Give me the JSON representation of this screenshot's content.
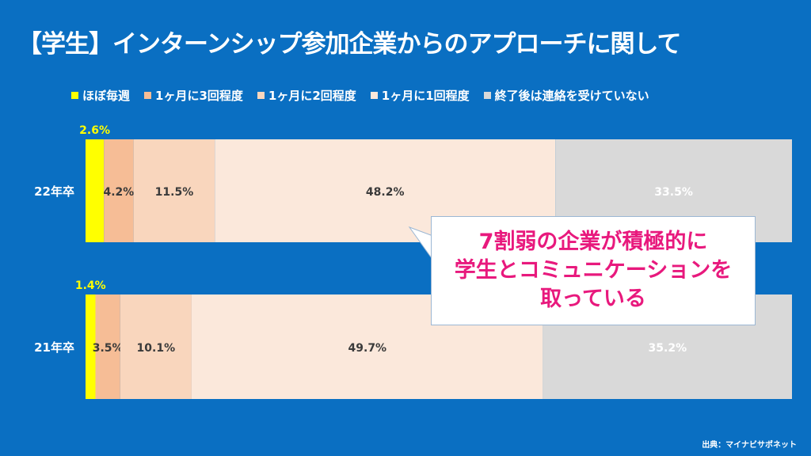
{
  "title": "【学生】インターンシップ参加企業からのアプローチに関して",
  "legend": [
    {
      "label": "ほぼ毎週",
      "color": "#ffff00"
    },
    {
      "label": "1ヶ月に3回程度",
      "color": "#f6bd96"
    },
    {
      "label": "1ヶ月に2回程度",
      "color": "#f9d6bd"
    },
    {
      "label": "1ヶ月に1回程度",
      "color": "#fbe8db"
    },
    {
      "label": "終了後は連絡を受けていない",
      "color": "#d9d9d9"
    }
  ],
  "callout": {
    "lines": [
      "7割弱の企業が積極的に",
      "学生とコミュニケーションを",
      "取っている"
    ]
  },
  "source": "出典：マイナビサポネット",
  "chart_data": {
    "type": "bar",
    "orientation": "horizontal",
    "stacked": "percent",
    "categories": [
      "22年卒",
      "21年卒"
    ],
    "series": [
      {
        "name": "ほぼ毎週",
        "values": [
          2.6,
          1.4
        ],
        "labels": [
          "2.6%",
          "1.4%"
        ],
        "color": "#ffff00"
      },
      {
        "name": "1ヶ月に3回程度",
        "values": [
          4.2,
          3.5
        ],
        "labels": [
          "4.2%",
          "3.5%"
        ],
        "color": "#f6bd96"
      },
      {
        "name": "1ヶ月に2回程度",
        "values": [
          11.5,
          10.1
        ],
        "labels": [
          "11.5%",
          "10.1%"
        ],
        "color": "#f9d6bd"
      },
      {
        "name": "1ヶ月に1回程度",
        "values": [
          48.2,
          49.7
        ],
        "labels": [
          "48.2%",
          "49.7%"
        ],
        "color": "#fbe8db"
      },
      {
        "name": "終了後は連絡を受けていない",
        "values": [
          33.5,
          35.2
        ],
        "labels": [
          "33.5%",
          "35.2%"
        ],
        "color": "#d9d9d9"
      }
    ],
    "xlim": [
      0,
      100
    ],
    "legend_position": "top",
    "grid": false
  }
}
